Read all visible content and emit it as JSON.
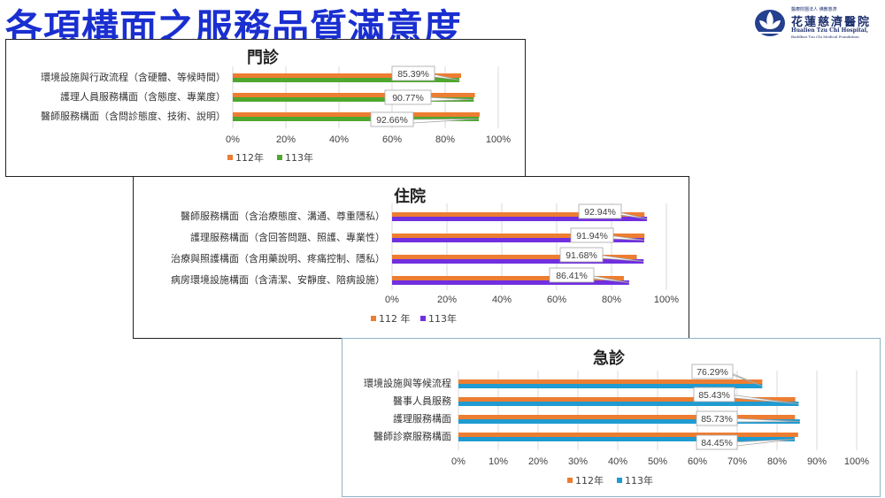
{
  "page": {
    "title": "各項構面之服務品質滿意度"
  },
  "logo": {
    "line1": "醫療財團法人 佛教慈濟",
    "line2": "花蓮慈濟醫院",
    "line3": "Hualien Tzu Chi Hospital,",
    "line4": "Buddhist Tzu Chi Medical Foundation"
  },
  "chart_data": [
    {
      "type": "bar",
      "orientation": "horizontal",
      "title": "門診",
      "categories": [
        "環境設施與行政流程（含硬體、等候時間）",
        "護理人員服務構面（含態度、專業度）",
        "醫師服務構面（含問診態度、技術、說明）"
      ],
      "series": [
        {
          "name": "112年",
          "color": "#ed7d31",
          "values": [
            86.0,
            91.2,
            93.0
          ]
        },
        {
          "name": "113年",
          "color": "#4ea72e",
          "values": [
            85.39,
            90.77,
            92.66
          ]
        }
      ],
      "data_labels": [
        "85.39%",
        "90.77%",
        "92.66%"
      ],
      "xlim": [
        0,
        100
      ],
      "xticks": [
        "0%",
        "20%",
        "40%",
        "60%",
        "80%",
        "100%"
      ],
      "grid": true,
      "legend": "bottom-left"
    },
    {
      "type": "bar",
      "orientation": "horizontal",
      "title": "住院",
      "categories": [
        "醫師服務構面（含治療態度、溝通、尊重隱私）",
        "護理服務構面（含回答問題、照護、專業性）",
        "治療與照護構面（含用藥說明、疼痛控制、隱私）",
        "病房環境設施構面（含清潔、安靜度、陪病設施）"
      ],
      "series": [
        {
          "name": "112 年",
          "color": "#ed7d31",
          "values": [
            92.0,
            92.0,
            89.2,
            84.5
          ]
        },
        {
          "name": "113年",
          "color": "#7030e0",
          "values": [
            92.94,
            91.94,
            91.68,
            86.41
          ]
        }
      ],
      "data_labels": [
        "92.94%",
        "91.94%",
        "91.68%",
        "86.41%"
      ],
      "xlim": [
        0,
        100
      ],
      "xticks": [
        "0%",
        "20%",
        "40%",
        "60%",
        "80%",
        "100%"
      ],
      "grid": true,
      "legend": "bottom-left"
    },
    {
      "type": "bar",
      "orientation": "horizontal",
      "title": "急診",
      "categories": [
        "環境設施與等候流程",
        "醫事人員服務",
        "護理服務構面",
        "醫師診察服務構面"
      ],
      "series": [
        {
          "name": "112年",
          "color": "#ed7d31",
          "values": [
            76.3,
            84.6,
            84.5,
            85.3
          ]
        },
        {
          "name": "113年",
          "color": "#1f9bd1",
          "values": [
            76.29,
            85.43,
            85.73,
            84.45
          ]
        }
      ],
      "data_labels": [
        "76.29%",
        "85.43%",
        "85.73%",
        "84.45%"
      ],
      "xlim": [
        0,
        100
      ],
      "xticks": [
        "0%",
        "10%",
        "20%",
        "30%",
        "40%",
        "50%",
        "60%",
        "70%",
        "80%",
        "90%",
        "100%"
      ],
      "grid": true,
      "legend": "bottom-center"
    }
  ]
}
